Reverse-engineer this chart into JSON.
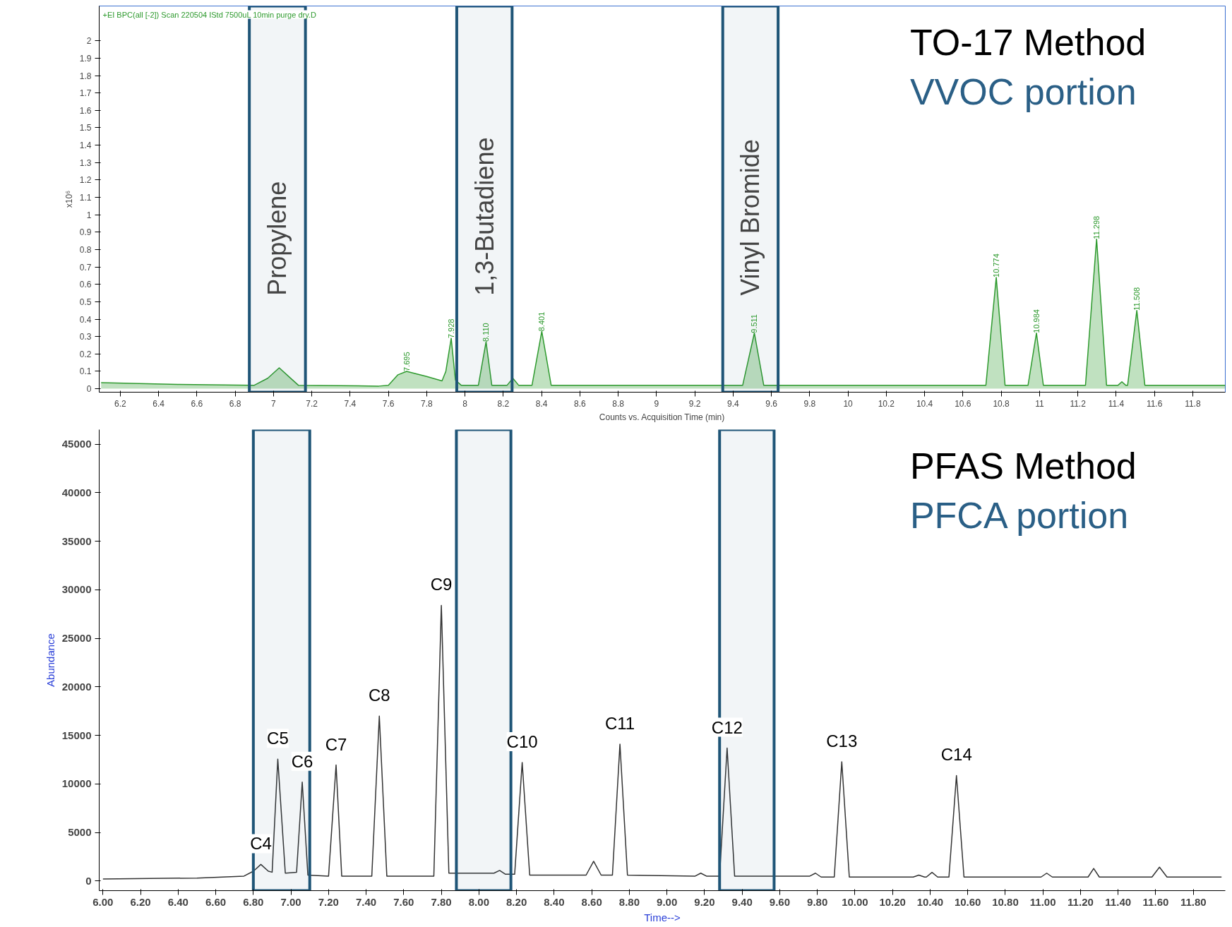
{
  "chart_data": [
    {
      "type": "area",
      "title": "TO-17 Method",
      "subtitle": "VVOC portion",
      "xlabel": "Counts vs. Acquisition Time (min)",
      "ylabel": "x10⁶",
      "color": "#2e9a2e",
      "x": [
        6.1,
        6.5,
        6.9,
        6.97,
        7.03,
        7.08,
        7.13,
        7.55,
        7.6,
        7.65,
        7.695,
        7.8,
        7.88,
        7.9,
        7.928,
        7.95,
        7.98,
        8.07,
        8.11,
        8.14,
        8.22,
        8.25,
        8.28,
        8.35,
        8.401,
        8.45,
        9.45,
        9.511,
        9.56,
        10.72,
        10.774,
        10.82,
        10.94,
        10.984,
        11.02,
        11.24,
        11.298,
        11.35,
        11.41,
        11.43,
        11.45,
        11.46,
        11.508,
        11.55,
        11.97
      ],
      "values": [
        0.035,
        0.025,
        0.02,
        0.06,
        0.12,
        0.07,
        0.02,
        0.015,
        0.02,
        0.08,
        0.1,
        0.07,
        0.045,
        0.1,
        0.29,
        0.05,
        0.02,
        0.02,
        0.27,
        0.02,
        0.02,
        0.06,
        0.02,
        0.02,
        0.33,
        0.02,
        0.02,
        0.32,
        0.02,
        0.02,
        0.64,
        0.02,
        0.02,
        0.32,
        0.02,
        0.02,
        0.86,
        0.02,
        0.02,
        0.04,
        0.02,
        0.02,
        0.45,
        0.02,
        0.02
      ],
      "xlim": [
        6.09,
        11.97
      ],
      "ylim": [
        -0.02,
        2.2
      ],
      "xticks": [
        6.2,
        6.4,
        6.6,
        6.8,
        7,
        7.2,
        7.4,
        7.6,
        7.8,
        8,
        8.2,
        8.4,
        8.6,
        8.8,
        9,
        9.2,
        9.4,
        9.6,
        9.8,
        10,
        10.2,
        10.4,
        10.6,
        10.8,
        11,
        11.2,
        11.4,
        11.6,
        11.8
      ],
      "yticks": [
        0,
        0.1,
        0.2,
        0.3,
        0.4,
        0.5,
        0.6,
        0.7,
        0.8,
        0.9,
        1,
        1.1,
        1.2,
        1.3,
        1.4,
        1.5,
        1.6,
        1.7,
        1.8,
        1.9,
        2
      ],
      "bands": [
        {
          "axis": "x",
          "from": 6.874,
          "to": 7.167,
          "label": "Propylene",
          "color": "#1f5577"
        },
        {
          "axis": "x",
          "from": 7.957,
          "to": 8.246,
          "label": "1,3-Butadiene",
          "color": "#1f5577"
        },
        {
          "axis": "x",
          "from": 9.346,
          "to": 9.635,
          "label": "Vinyl Bromide",
          "color": "#1f5577"
        }
      ],
      "annotations": [
        "+EI BPC(all [-2]) Scan 220504 IStd 7500uL 10min purge dry.D",
        {
          "text": "7.695",
          "x": 7.695,
          "y": 0.1
        },
        {
          "text": "7.928",
          "x": 7.928,
          "y": 0.29
        },
        {
          "text": "8.110",
          "x": 8.11,
          "y": 0.27
        },
        {
          "text": "8.401",
          "x": 8.401,
          "y": 0.33
        },
        {
          "text": "9.511",
          "x": 9.511,
          "y": 0.32
        },
        {
          "text": "10.774",
          "x": 10.774,
          "y": 0.64
        },
        {
          "text": "10.984",
          "x": 10.984,
          "y": 0.32
        },
        {
          "text": "11.298",
          "x": 11.298,
          "y": 0.86
        },
        {
          "text": "11.508",
          "x": 11.508,
          "y": 0.45
        }
      ]
    },
    {
      "type": "line",
      "title": "PFAS Method",
      "subtitle": "PFCA portion",
      "xlabel": "Time-->",
      "ylabel": "Abundance",
      "color": "#333333",
      "x": [
        6.0,
        6.5,
        6.75,
        6.8,
        6.84,
        6.88,
        6.9,
        6.93,
        6.97,
        7.03,
        7.06,
        7.09,
        7.2,
        7.24,
        7.27,
        7.43,
        7.47,
        7.51,
        7.76,
        7.8,
        7.84,
        8.08,
        8.11,
        8.14,
        8.19,
        8.23,
        8.27,
        8.57,
        8.61,
        8.65,
        8.71,
        8.75,
        8.79,
        9.15,
        9.18,
        9.21,
        9.28,
        9.32,
        9.36,
        9.76,
        9.79,
        9.82,
        9.89,
        9.93,
        9.97,
        10.31,
        10.34,
        10.37,
        10.38,
        10.41,
        10.44,
        10.5,
        10.54,
        10.58,
        10.99,
        11.02,
        11.05,
        11.24,
        11.27,
        11.3,
        11.58,
        11.62,
        11.66,
        11.95
      ],
      "values": [
        200,
        300,
        500,
        1000,
        1700,
        1000,
        900,
        12540,
        800,
        900,
        10180,
        600,
        500,
        11940,
        500,
        500,
        16990,
        500,
        500,
        28390,
        800,
        800,
        1080,
        700,
        700,
        12200,
        600,
        600,
        2020,
        600,
        600,
        14090,
        600,
        500,
        800,
        500,
        500,
        13690,
        500,
        500,
        800,
        400,
        400,
        12270,
        400,
        400,
        600,
        400,
        400,
        880,
        400,
        400,
        10860,
        400,
        400,
        800,
        400,
        400,
        1280,
        400,
        400,
        1420,
        400,
        400
      ],
      "xlim": [
        5.98,
        11.97
      ],
      "ylim": [
        -1000,
        46500
      ],
      "xticks": [
        {
          "value": 6.0,
          "label": "6.00"
        },
        {
          "value": 6.2,
          "label": "6.20"
        },
        {
          "value": 6.4,
          "label": "6.40"
        },
        {
          "value": 6.6,
          "label": "6.60"
        },
        {
          "value": 6.8,
          "label": "6.80"
        },
        {
          "value": 7.0,
          "label": "7.00"
        },
        {
          "value": 7.2,
          "label": "7.20"
        },
        {
          "value": 7.4,
          "label": "7.40"
        },
        {
          "value": 7.6,
          "label": "7.60"
        },
        {
          "value": 7.8,
          "label": "7.80"
        },
        {
          "value": 8.0,
          "label": "8.00"
        },
        {
          "value": 8.2,
          "label": "8.20"
        },
        {
          "value": 8.4,
          "label": "8.40"
        },
        {
          "value": 8.6,
          "label": "8.60"
        },
        {
          "value": 8.8,
          "label": "8.80"
        },
        {
          "value": 9.0,
          "label": "9.00"
        },
        {
          "value": 9.2,
          "label": "9.20"
        },
        {
          "value": 9.4,
          "label": "9.40"
        },
        {
          "value": 9.6,
          "label": "9.60"
        },
        {
          "value": 9.8,
          "label": "9.80"
        },
        {
          "value": 10.0,
          "label": "10.00"
        },
        {
          "value": 10.2,
          "label": "10.20"
        },
        {
          "value": 10.4,
          "label": "10.40"
        },
        {
          "value": 10.6,
          "label": "10.60"
        },
        {
          "value": 10.8,
          "label": "10.80"
        },
        {
          "value": 11.0,
          "label": "11.00"
        },
        {
          "value": 11.2,
          "label": "11.20"
        },
        {
          "value": 11.4,
          "label": "11.40"
        },
        {
          "value": 11.6,
          "label": "11.60"
        },
        {
          "value": 11.8,
          "label": "11.80"
        }
      ],
      "yticks": [
        0,
        5000,
        10000,
        15000,
        20000,
        25000,
        30000,
        35000,
        40000,
        45000
      ],
      "bands": [
        {
          "axis": "x",
          "from": 6.8,
          "to": 7.1,
          "color": "#1f5577"
        },
        {
          "axis": "x",
          "from": 7.88,
          "to": 8.17,
          "color": "#1f5577"
        },
        {
          "axis": "x",
          "from": 9.28,
          "to": 9.57,
          "color": "#1f5577"
        }
      ],
      "annotations": [
        {
          "text": "C4",
          "x": 6.84,
          "y": 1700
        },
        {
          "text": "C5",
          "x": 6.93,
          "y": 12540
        },
        {
          "text": "C6",
          "x": 7.06,
          "y": 10180
        },
        {
          "text": "C7",
          "x": 7.24,
          "y": 11940
        },
        {
          "text": "C8",
          "x": 7.47,
          "y": 16990
        },
        {
          "text": "C9",
          "x": 7.8,
          "y": 28390
        },
        {
          "text": "C10",
          "x": 8.23,
          "y": 12200
        },
        {
          "text": "C11",
          "x": 8.75,
          "y": 14090
        },
        {
          "text": "C12",
          "x": 9.32,
          "y": 13690
        },
        {
          "text": "C13",
          "x": 9.93,
          "y": 12270
        },
        {
          "text": "C14",
          "x": 10.54,
          "y": 10860
        }
      ]
    }
  ]
}
